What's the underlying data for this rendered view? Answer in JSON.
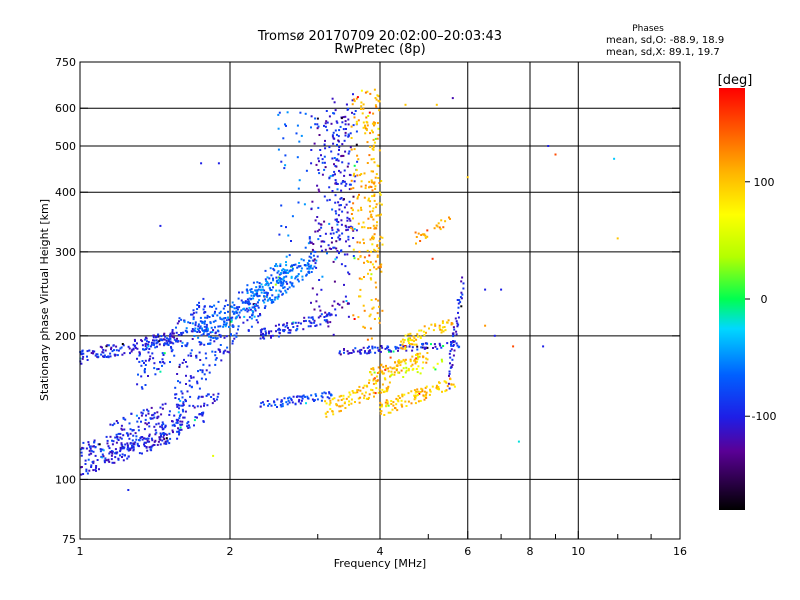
{
  "header": {
    "title": "Tromsø 20170709 20:02:00–20:03:43",
    "subtitle": "RwPretec (8p)"
  },
  "phases_box": {
    "heading": "Phases",
    "line_o": "mean, sd,O: -88.9, 18.9",
    "line_x": "mean, sd,X: 89.1, 19.7"
  },
  "colorbar": {
    "label": "[deg]",
    "range": [
      -180,
      180
    ],
    "ticks": [
      {
        "value": 100,
        "label": "100"
      },
      {
        "value": 0,
        "label": "0"
      },
      {
        "value": -100,
        "label": "-100"
      }
    ]
  },
  "chart_data": {
    "type": "scatter",
    "title": "Tromsø 20170709 20:02:00–20:03:43",
    "subtitle": "RwPretec (8p)",
    "xlabel": "Frequency [MHz]",
    "ylabel": "Stationary phase Virtual Height [km]",
    "xscale": "log",
    "yscale": "log",
    "xlim": [
      1,
      16
    ],
    "ylim": [
      75,
      750
    ],
    "grid": true,
    "x_ticks": [
      {
        "value": 1,
        "label": "1"
      },
      {
        "value": 2,
        "label": "2"
      },
      {
        "value": 4,
        "label": "4"
      },
      {
        "value": 6,
        "label": "6"
      },
      {
        "value": 8,
        "label": "8"
      },
      {
        "value": 10,
        "label": "10"
      },
      {
        "value": 16,
        "label": "16"
      }
    ],
    "x_gridlines": [
      2,
      4,
      6,
      8,
      10
    ],
    "x_minor_ticks": [
      3,
      5,
      7,
      9,
      12,
      14
    ],
    "y_ticks": [
      {
        "value": 75,
        "label": "75"
      },
      {
        "value": 100,
        "label": "100"
      },
      {
        "value": 200,
        "label": "200"
      },
      {
        "value": 300,
        "label": "300"
      },
      {
        "value": 400,
        "label": "400"
      },
      {
        "value": 500,
        "label": "500"
      },
      {
        "value": 600,
        "label": "600"
      },
      {
        "value": 750,
        "label": "750"
      }
    ],
    "y_gridlines": [
      100,
      200,
      300,
      400,
      500,
      600
    ],
    "color_variable": "phase [deg]",
    "traces": [
      {
        "f": [
          1.0,
          1.6
        ],
        "h": [
          105,
          125
        ],
        "phase": -100,
        "count": 160,
        "spread_h": 4
      },
      {
        "f": [
          1.0,
          1.8
        ],
        "h": [
          115,
          135
        ],
        "phase": -95,
        "count": 150,
        "spread_h": 4
      },
      {
        "f": [
          1.15,
          1.9
        ],
        "h": [
          128,
          150
        ],
        "phase": -98,
        "count": 90,
        "spread_h": 5
      },
      {
        "f": [
          1.0,
          1.6
        ],
        "h": [
          180,
          200
        ],
        "phase": -100,
        "count": 150,
        "spread_h": 6
      },
      {
        "f": [
          1.3,
          1.8
        ],
        "h": [
          165,
          225
        ],
        "phase": -92,
        "count": 120,
        "spread_h": 18
      },
      {
        "f": [
          1.55,
          2.3
        ],
        "h": [
          150,
          235
        ],
        "phase": -90,
        "count": 160,
        "spread_h": 20
      },
      {
        "f": [
          1.6,
          2.6
        ],
        "h": [
          200,
          260
        ],
        "phase": -75,
        "count": 140,
        "spread_h": 15
      },
      {
        "f": [
          1.8,
          2.6
        ],
        "h": [
          200,
          280
        ],
        "phase": -60,
        "count": 90,
        "spread_h": 15
      },
      {
        "f": [
          2.2,
          3.0
        ],
        "h": [
          230,
          290
        ],
        "phase": -60,
        "count": 150,
        "spread_h": 15
      },
      {
        "f": [
          2.3,
          3.2
        ],
        "h": [
          200,
          220
        ],
        "phase": -95,
        "count": 90,
        "spread_h": 6
      },
      {
        "f": [
          2.5,
          3.3
        ],
        "h": [
          290,
          600
        ],
        "phase": -70,
        "count": 70,
        "spread_h": 30
      },
      {
        "f": [
          2.9,
          3.5
        ],
        "h": [
          210,
          580
        ],
        "phase": -115,
        "count": 160,
        "spread_h": 40
      },
      {
        "f": [
          3.2,
          3.6
        ],
        "h": [
          300,
          640
        ],
        "phase": -95,
        "count": 110,
        "spread_h": 40
      },
      {
        "f": [
          3.5,
          4.0
        ],
        "h": [
          200,
          650
        ],
        "phase": 110,
        "count": 180,
        "spread_h": 60
      },
      {
        "f": [
          3.8,
          4.05
        ],
        "h": [
          210,
          420
        ],
        "phase": 108,
        "count": 70,
        "spread_h": 50
      },
      {
        "f": [
          3.3,
          5.8
        ],
        "h": [
          185,
          192
        ],
        "phase": -95,
        "count": 100,
        "spread_h": 3
      },
      {
        "f": [
          3.1,
          4.2
        ],
        "h": [
          140,
          160
        ],
        "phase": 100,
        "count": 90,
        "spread_h": 6
      },
      {
        "f": [
          3.8,
          5.0
        ],
        "h": [
          165,
          180
        ],
        "phase": 105,
        "count": 90,
        "spread_h": 6
      },
      {
        "f": [
          4.0,
          5.7
        ],
        "h": [
          140,
          160
        ],
        "phase": 100,
        "count": 110,
        "spread_h": 5
      },
      {
        "f": [
          4.4,
          5.6
        ],
        "h": [
          190,
          215
        ],
        "phase": 100,
        "count": 60,
        "spread_h": 8
      },
      {
        "f": [
          5.5,
          5.9
        ],
        "h": [
          170,
          260
        ],
        "phase": -100,
        "count": 50,
        "spread_h": 20
      },
      {
        "f": [
          2.3,
          3.2
        ],
        "h": [
          143,
          150
        ],
        "phase": -85,
        "count": 70,
        "spread_h": 3
      },
      {
        "f": [
          4.7,
          5.6
        ],
        "h": [
          320,
          350
        ],
        "phase": 120,
        "count": 25,
        "spread_h": 10
      },
      {
        "f": [
          4.2,
          5.4
        ],
        "h": [
          165,
          175
        ],
        "phase": 60,
        "count": 20,
        "spread_h": 4
      }
    ],
    "isolated_points": [
      {
        "f": 1.25,
        "h": 95,
        "phase": -95
      },
      {
        "f": 1.45,
        "h": 340,
        "phase": -100
      },
      {
        "f": 1.75,
        "h": 460,
        "phase": -100
      },
      {
        "f": 1.9,
        "h": 460,
        "phase": -100
      },
      {
        "f": 1.85,
        "h": 112,
        "phase": 60
      },
      {
        "f": 5.6,
        "h": 630,
        "phase": -120
      },
      {
        "f": 5.2,
        "h": 610,
        "phase": 100
      },
      {
        "f": 4.5,
        "h": 610,
        "phase": 100
      },
      {
        "f": 6.0,
        "h": 430,
        "phase": 100
      },
      {
        "f": 7.0,
        "h": 250,
        "phase": -100
      },
      {
        "f": 6.5,
        "h": 250,
        "phase": -100
      },
      {
        "f": 7.4,
        "h": 190,
        "phase": 150
      },
      {
        "f": 7.6,
        "h": 120,
        "phase": -20
      },
      {
        "f": 8.5,
        "h": 190,
        "phase": -100
      },
      {
        "f": 8.7,
        "h": 500,
        "phase": -100
      },
      {
        "f": 9.0,
        "h": 480,
        "phase": 150
      },
      {
        "f": 11.8,
        "h": 470,
        "phase": -30
      },
      {
        "f": 12.0,
        "h": 320,
        "phase": 100
      },
      {
        "f": 6.8,
        "h": 200,
        "phase": -100
      },
      {
        "f": 6.5,
        "h": 210,
        "phase": 120
      },
      {
        "f": 5.1,
        "h": 290,
        "phase": 160
      },
      {
        "f": 4.2,
        "h": 180,
        "phase": 150
      }
    ]
  }
}
